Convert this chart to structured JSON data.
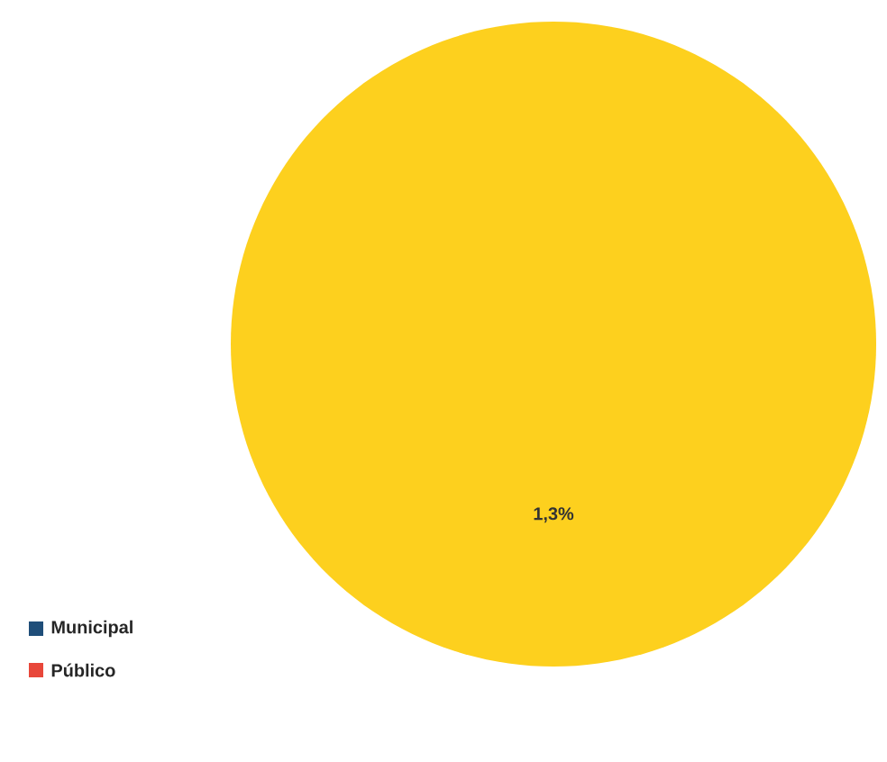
{
  "chart_data": {
    "type": "pie",
    "categories": [
      "Municipal",
      "Público",
      null
    ],
    "values": [
      0,
      0,
      1.3
    ],
    "colors": [
      "#1f4e79",
      "#e8473a",
      "#fdd01e"
    ],
    "value_labels": [
      null,
      null,
      "1,3%"
    ],
    "legend": "bottom left"
  }
}
